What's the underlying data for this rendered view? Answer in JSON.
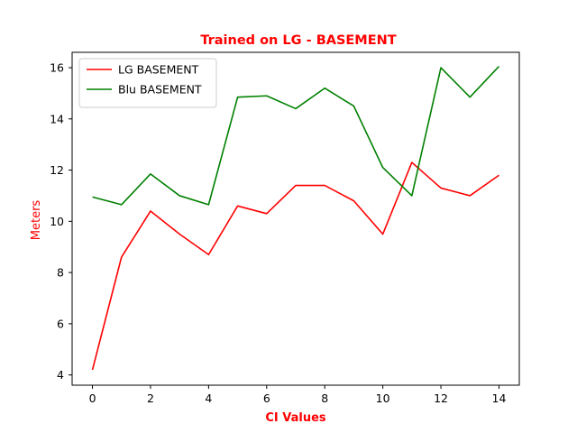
{
  "chart_data": {
    "type": "line",
    "title": "Trained on LG - BASEMENT",
    "xlabel": "CI Values",
    "ylabel": "Meters",
    "xlim": [
      -0.7,
      14.7
    ],
    "ylim": [
      3.6,
      16.6
    ],
    "xticks": [
      0,
      2,
      4,
      6,
      8,
      10,
      12,
      14
    ],
    "yticks": [
      4,
      6,
      8,
      10,
      12,
      14,
      16
    ],
    "grid": false,
    "legend_position": "upper-left",
    "x": [
      0,
      1,
      2,
      3,
      4,
      5,
      6,
      7,
      8,
      9,
      10,
      11,
      12,
      13,
      14
    ],
    "series": [
      {
        "name": "LG BASEMENT",
        "color": "#ff0000",
        "values": [
          4.2,
          8.6,
          10.4,
          9.5,
          8.7,
          10.6,
          10.3,
          11.4,
          11.4,
          10.8,
          9.5,
          12.3,
          11.3,
          11.0,
          11.8
        ]
      },
      {
        "name": "Blu BASEMENT",
        "color": "#008000",
        "values": [
          10.95,
          10.65,
          11.85,
          11.0,
          10.65,
          14.85,
          14.9,
          14.4,
          15.2,
          14.5,
          12.1,
          11.0,
          16.0,
          14.85,
          16.05
        ]
      }
    ]
  }
}
